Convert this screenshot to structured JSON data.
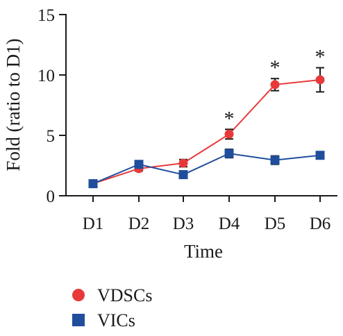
{
  "chart_data": {
    "type": "line",
    "categories": [
      "D1",
      "D2",
      "D3",
      "D4",
      "D5",
      "D6"
    ],
    "xlabel": "Time",
    "ylabel": "Fold (ratio to D1)",
    "ylim": [
      0,
      15
    ],
    "yticks": [
      0,
      5,
      10,
      15
    ],
    "grid": false,
    "legend_position": "bottom-left",
    "series": [
      {
        "name": "VDSCs",
        "marker": "circle",
        "color": "#e8393a",
        "values": [
          1.0,
          2.25,
          2.7,
          5.1,
          9.2,
          9.6
        ],
        "errors": [
          0.05,
          0.2,
          0.3,
          0.4,
          0.5,
          1.0
        ]
      },
      {
        "name": "VICs",
        "marker": "square",
        "color": "#1f4e9c",
        "values": [
          1.0,
          2.6,
          1.75,
          3.5,
          2.95,
          3.35
        ],
        "errors": [
          0.05,
          0.15,
          0.2,
          0.35,
          0.35,
          0.15
        ]
      }
    ],
    "annotations": [
      {
        "category": "D4",
        "text": "*"
      },
      {
        "category": "D5",
        "text": "*"
      },
      {
        "category": "D6",
        "text": "*"
      }
    ]
  }
}
